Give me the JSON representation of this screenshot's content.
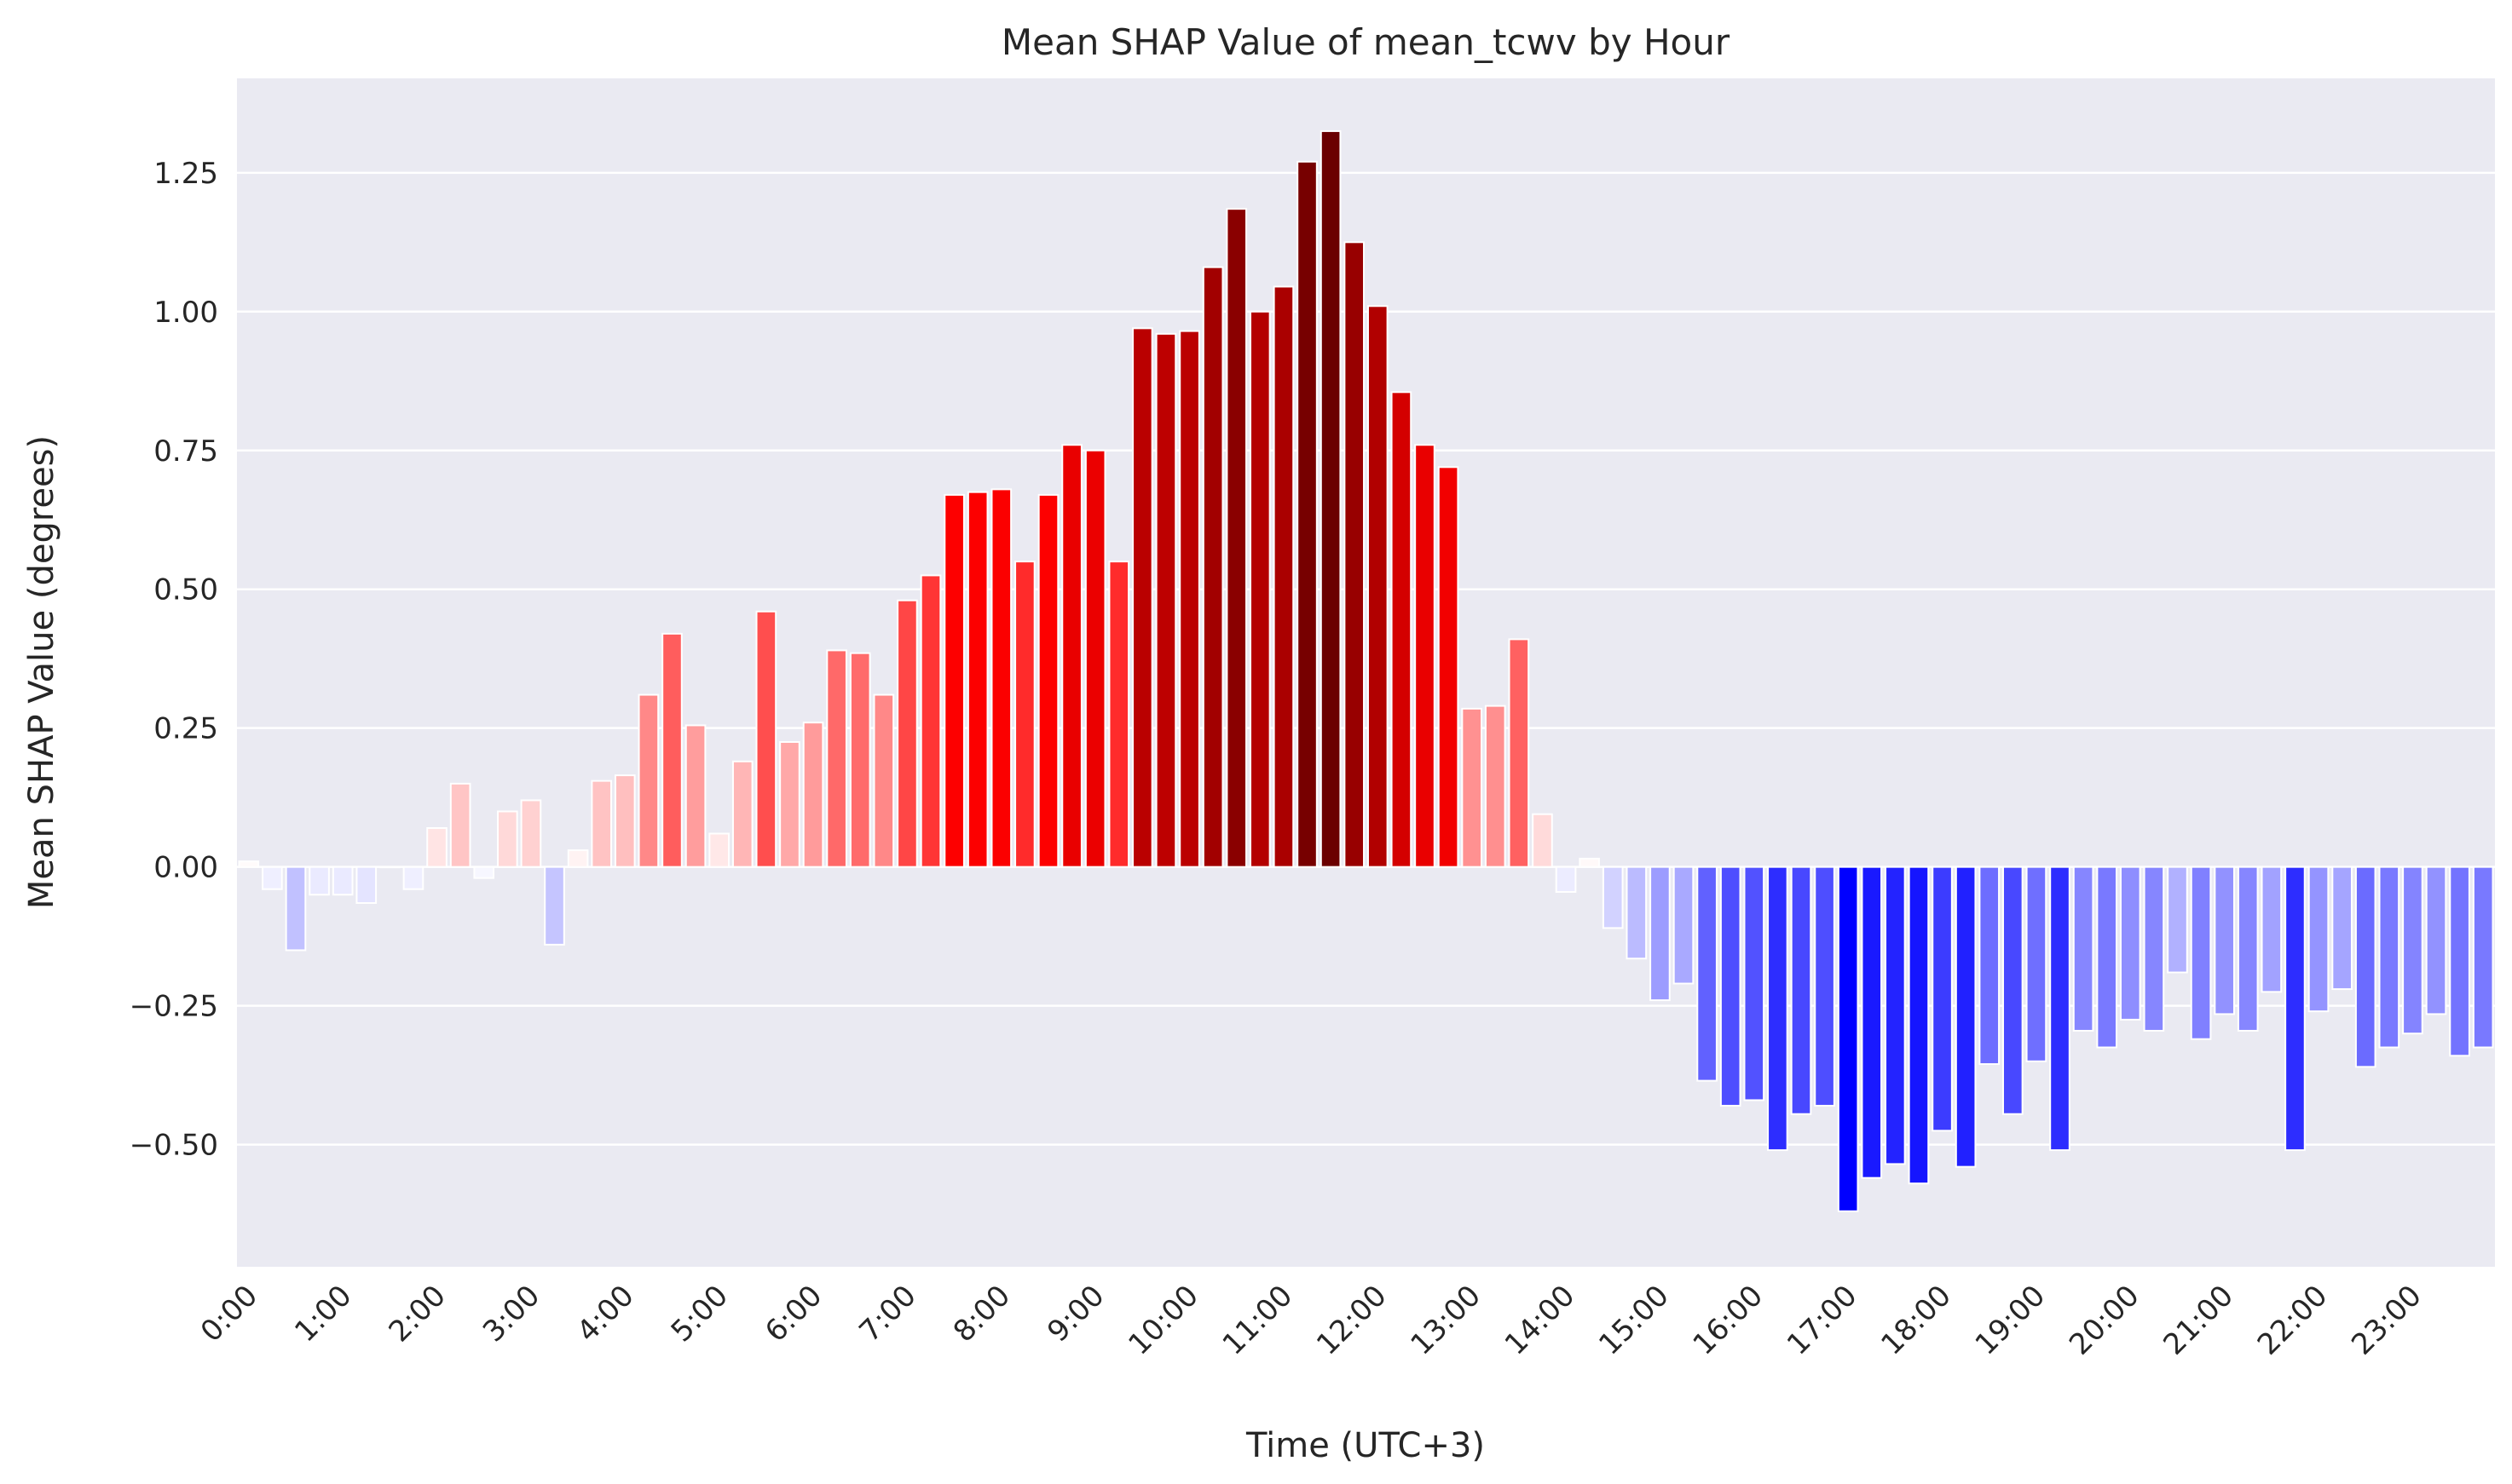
{
  "chart_data": {
    "type": "bar",
    "title": "Mean SHAP Value of mean_tcwv by Hour",
    "xlabel": "Time (UTC+3)",
    "ylabel": "Mean SHAP Value (degrees)",
    "ylim": [
      -0.72,
      1.42
    ],
    "yticks": [
      -0.5,
      -0.25,
      0.0,
      0.25,
      0.5,
      0.75,
      1.0,
      1.25
    ],
    "ytick_labels": [
      "−0.50",
      "−0.25",
      "0.00",
      "0.25",
      "0.50",
      "0.75",
      "1.00",
      "1.25"
    ],
    "xtick_labels": [
      "0:00",
      "1:00",
      "2:00",
      "3:00",
      "4:00",
      "5:00",
      "6:00",
      "7:00",
      "8:00",
      "9:00",
      "10:00",
      "11:00",
      "12:00",
      "13:00",
      "14:00",
      "15:00",
      "16:00",
      "17:00",
      "18:00",
      "19:00",
      "20:00",
      "21:00",
      "22:00",
      "23:00"
    ],
    "bars_per_hour": 4,
    "grid": true,
    "background_color": "#eaeaf2",
    "positive_colormap": [
      "#ffffff",
      "#ff0000",
      "#6b0000"
    ],
    "negative_colormap": [
      "#ffffff",
      "#0000ff"
    ],
    "values": [
      0.01,
      -0.04,
      -0.15,
      -0.05,
      -0.05,
      -0.065,
      0.0,
      -0.04,
      0.07,
      0.15,
      -0.02,
      0.1,
      0.12,
      -0.14,
      0.03,
      0.155,
      0.165,
      0.31,
      0.42,
      0.255,
      0.06,
      0.19,
      0.46,
      0.225,
      0.26,
      0.39,
      0.385,
      0.31,
      0.48,
      0.525,
      0.67,
      0.675,
      0.68,
      0.55,
      0.67,
      0.76,
      0.75,
      0.55,
      0.97,
      0.96,
      0.965,
      1.08,
      1.185,
      1.0,
      1.045,
      1.27,
      1.325,
      1.125,
      1.01,
      0.855,
      0.76,
      0.72,
      0.285,
      0.29,
      0.41,
      0.095,
      -0.045,
      0.015,
      -0.11,
      -0.165,
      -0.24,
      -0.21,
      -0.385,
      -0.43,
      -0.42,
      -0.51,
      -0.445,
      -0.43,
      -0.62,
      -0.56,
      -0.535,
      -0.57,
      -0.475,
      -0.54,
      -0.355,
      -0.445,
      -0.35,
      -0.51,
      -0.295,
      -0.325,
      -0.275,
      -0.295,
      -0.19,
      -0.31,
      -0.265,
      -0.295,
      -0.225,
      -0.51,
      -0.26,
      -0.22,
      -0.36,
      -0.325,
      -0.3,
      -0.265,
      -0.34,
      -0.325
    ]
  }
}
